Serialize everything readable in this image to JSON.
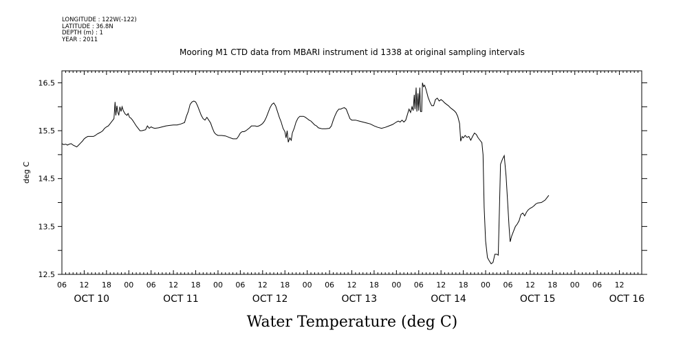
{
  "header": {
    "longitude": "LONGITUDE : 122W(-122)",
    "latitude": "LATITUDE : 36.8N",
    "depth": "DEPTH (m) : 1",
    "year": "YEAR : 2011"
  },
  "chart_data": {
    "type": "line",
    "title": "Mooring M1 CTD data from MBARI instrument id 1338 at original sampling intervals",
    "xlabel": "Water Temperature (deg C)",
    "ylabel": "deg C",
    "ylim": [
      12.5,
      16.9
    ],
    "yticks": [
      "16.5",
      "15.5",
      "14.5",
      "13.5",
      "12.5"
    ],
    "ytick_values": [
      16.5,
      15.5,
      14.5,
      13.5,
      12.5
    ],
    "x_units": "hours since Oct 10 00:00, 2011",
    "xlim": [
      6,
      162
    ],
    "hour_ticks": [
      {
        "x": 6,
        "label": "06"
      },
      {
        "x": 12,
        "label": "12"
      },
      {
        "x": 18,
        "label": "18"
      },
      {
        "x": 24,
        "label": "00"
      },
      {
        "x": 30,
        "label": "06"
      },
      {
        "x": 36,
        "label": "12"
      },
      {
        "x": 42,
        "label": "18"
      },
      {
        "x": 48,
        "label": "00"
      },
      {
        "x": 54,
        "label": "06"
      },
      {
        "x": 60,
        "label": "12"
      },
      {
        "x": 66,
        "label": "18"
      },
      {
        "x": 72,
        "label": "00"
      },
      {
        "x": 78,
        "label": "06"
      },
      {
        "x": 84,
        "label": "12"
      },
      {
        "x": 90,
        "label": "18"
      },
      {
        "x": 96,
        "label": "00"
      },
      {
        "x": 102,
        "label": "06"
      },
      {
        "x": 108,
        "label": "12"
      },
      {
        "x": 114,
        "label": "18"
      },
      {
        "x": 120,
        "label": "00"
      },
      {
        "x": 126,
        "label": "06"
      },
      {
        "x": 132,
        "label": "12"
      },
      {
        "x": 138,
        "label": "18"
      },
      {
        "x": 144,
        "label": "00"
      },
      {
        "x": 150,
        "label": "06"
      },
      {
        "x": 156,
        "label": "12"
      }
    ],
    "day_labels": [
      {
        "x": 14,
        "label": "OCT 10"
      },
      {
        "x": 38,
        "label": "OCT 11"
      },
      {
        "x": 62,
        "label": "OCT 12"
      },
      {
        "x": 86,
        "label": "OCT 13"
      },
      {
        "x": 110,
        "label": "OCT 14"
      },
      {
        "x": 134,
        "label": "OCT 15"
      },
      {
        "x": 158,
        "label": "OCT 16"
      }
    ],
    "series": [
      {
        "points": [
          [
            6.0,
            15.23
          ],
          [
            6.5,
            15.21
          ],
          [
            7.0,
            15.22
          ],
          [
            7.5,
            15.2
          ],
          [
            8.0,
            15.22
          ],
          [
            8.5,
            15.23
          ],
          [
            9.0,
            15.2
          ],
          [
            9.5,
            15.18
          ],
          [
            10.0,
            15.16
          ],
          [
            10.5,
            15.2
          ],
          [
            11.0,
            15.24
          ],
          [
            11.5,
            15.28
          ],
          [
            12.0,
            15.33
          ],
          [
            12.5,
            15.36
          ],
          [
            13.0,
            15.38
          ],
          [
            13.5,
            15.38
          ],
          [
            14.0,
            15.38
          ],
          [
            14.5,
            15.38
          ],
          [
            15.0,
            15.4
          ],
          [
            15.5,
            15.43
          ],
          [
            16.0,
            15.45
          ],
          [
            16.5,
            15.47
          ],
          [
            17.0,
            15.5
          ],
          [
            17.5,
            15.55
          ],
          [
            18.0,
            15.58
          ],
          [
            18.5,
            15.6
          ],
          [
            19.0,
            15.65
          ],
          [
            19.5,
            15.7
          ],
          [
            20.0,
            15.75
          ],
          [
            20.3,
            16.1
          ],
          [
            20.5,
            15.82
          ],
          [
            20.8,
            16.02
          ],
          [
            21.0,
            15.9
          ],
          [
            21.3,
            15.82
          ],
          [
            21.6,
            16.0
          ],
          [
            21.9,
            15.9
          ],
          [
            22.2,
            16.0
          ],
          [
            22.5,
            15.92
          ],
          [
            23.0,
            15.85
          ],
          [
            23.5,
            15.82
          ],
          [
            23.8,
            15.86
          ],
          [
            24.2,
            15.78
          ],
          [
            24.6,
            15.76
          ],
          [
            25.0,
            15.72
          ],
          [
            25.5,
            15.66
          ],
          [
            26.0,
            15.6
          ],
          [
            26.5,
            15.55
          ],
          [
            27.0,
            15.5
          ],
          [
            27.5,
            15.5
          ],
          [
            28.0,
            15.51
          ],
          [
            28.5,
            15.52
          ],
          [
            29.0,
            15.6
          ],
          [
            29.5,
            15.55
          ],
          [
            30.0,
            15.58
          ],
          [
            30.5,
            15.56
          ],
          [
            31.0,
            15.55
          ],
          [
            32.0,
            15.56
          ],
          [
            33.0,
            15.58
          ],
          [
            34.0,
            15.6
          ],
          [
            35.0,
            15.61
          ],
          [
            36.0,
            15.62
          ],
          [
            37.0,
            15.62
          ],
          [
            38.0,
            15.64
          ],
          [
            39.0,
            15.67
          ],
          [
            39.5,
            15.8
          ],
          [
            40.0,
            15.9
          ],
          [
            40.5,
            16.05
          ],
          [
            41.0,
            16.1
          ],
          [
            41.5,
            16.12
          ],
          [
            42.0,
            16.1
          ],
          [
            42.5,
            16.02
          ],
          [
            43.0,
            15.92
          ],
          [
            43.5,
            15.82
          ],
          [
            44.0,
            15.75
          ],
          [
            44.5,
            15.72
          ],
          [
            45.0,
            15.78
          ],
          [
            45.5,
            15.72
          ],
          [
            46.0,
            15.66
          ],
          [
            46.5,
            15.55
          ],
          [
            47.0,
            15.46
          ],
          [
            47.5,
            15.42
          ],
          [
            48.0,
            15.4
          ],
          [
            49.0,
            15.4
          ],
          [
            50.0,
            15.39
          ],
          [
            51.0,
            15.36
          ],
          [
            52.0,
            15.33
          ],
          [
            52.5,
            15.33
          ],
          [
            53.0,
            15.33
          ],
          [
            53.5,
            15.38
          ],
          [
            54.0,
            15.45
          ],
          [
            54.5,
            15.48
          ],
          [
            55.0,
            15.48
          ],
          [
            55.5,
            15.5
          ],
          [
            56.0,
            15.53
          ],
          [
            56.5,
            15.56
          ],
          [
            57.0,
            15.6
          ],
          [
            57.5,
            15.6
          ],
          [
            58.0,
            15.6
          ],
          [
            58.5,
            15.59
          ],
          [
            59.0,
            15.6
          ],
          [
            59.5,
            15.62
          ],
          [
            60.0,
            15.65
          ],
          [
            60.5,
            15.7
          ],
          [
            61.0,
            15.78
          ],
          [
            61.5,
            15.88
          ],
          [
            62.0,
            15.98
          ],
          [
            62.5,
            16.05
          ],
          [
            63.0,
            16.08
          ],
          [
            63.5,
            16.02
          ],
          [
            64.0,
            15.9
          ],
          [
            64.5,
            15.78
          ],
          [
            65.0,
            15.68
          ],
          [
            65.5,
            15.55
          ],
          [
            66.0,
            15.48
          ],
          [
            66.3,
            15.35
          ],
          [
            66.6,
            15.5
          ],
          [
            66.9,
            15.26
          ],
          [
            67.3,
            15.35
          ],
          [
            67.7,
            15.3
          ],
          [
            68.0,
            15.45
          ],
          [
            68.5,
            15.55
          ],
          [
            69.0,
            15.68
          ],
          [
            69.5,
            15.76
          ],
          [
            70.0,
            15.8
          ],
          [
            70.5,
            15.8
          ],
          [
            71.0,
            15.8
          ],
          [
            71.5,
            15.78
          ],
          [
            72.0,
            15.75
          ],
          [
            72.5,
            15.72
          ],
          [
            73.0,
            15.7
          ],
          [
            73.5,
            15.66
          ],
          [
            74.0,
            15.62
          ],
          [
            74.5,
            15.6
          ],
          [
            75.0,
            15.56
          ],
          [
            75.5,
            15.55
          ],
          [
            76.0,
            15.54
          ],
          [
            77.0,
            15.54
          ],
          [
            78.0,
            15.55
          ],
          [
            78.5,
            15.6
          ],
          [
            79.0,
            15.72
          ],
          [
            79.5,
            15.82
          ],
          [
            80.0,
            15.9
          ],
          [
            80.5,
            15.95
          ],
          [
            81.0,
            15.95
          ],
          [
            81.5,
            15.97
          ],
          [
            82.0,
            15.98
          ],
          [
            82.5,
            15.95
          ],
          [
            83.0,
            15.85
          ],
          [
            83.5,
            15.75
          ],
          [
            84.0,
            15.72
          ],
          [
            85.0,
            15.72
          ],
          [
            86.0,
            15.7
          ],
          [
            87.0,
            15.68
          ],
          [
            88.0,
            15.66
          ],
          [
            89.0,
            15.64
          ],
          [
            90.0,
            15.6
          ],
          [
            91.0,
            15.57
          ],
          [
            92.0,
            15.55
          ],
          [
            93.0,
            15.57
          ],
          [
            94.0,
            15.6
          ],
          [
            95.0,
            15.63
          ],
          [
            96.0,
            15.68
          ],
          [
            96.5,
            15.7
          ],
          [
            97.0,
            15.68
          ],
          [
            97.5,
            15.72
          ],
          [
            98.0,
            15.68
          ],
          [
            98.5,
            15.72
          ],
          [
            99.0,
            15.85
          ],
          [
            99.4,
            15.95
          ],
          [
            99.8,
            15.88
          ],
          [
            100.2,
            16.0
          ],
          [
            100.5,
            15.92
          ],
          [
            100.8,
            16.25
          ],
          [
            101.0,
            15.95
          ],
          [
            101.3,
            16.4
          ],
          [
            101.5,
            15.9
          ],
          [
            101.8,
            16.28
          ],
          [
            102.0,
            15.92
          ],
          [
            102.3,
            16.4
          ],
          [
            102.5,
            15.9
          ],
          [
            102.8,
            15.9
          ],
          [
            103.0,
            16.5
          ],
          [
            103.3,
            16.42
          ],
          [
            103.6,
            16.45
          ],
          [
            104.0,
            16.35
          ],
          [
            104.5,
            16.2
          ],
          [
            105.0,
            16.1
          ],
          [
            105.5,
            16.02
          ],
          [
            106.0,
            16.02
          ],
          [
            106.5,
            16.15
          ],
          [
            107.0,
            16.18
          ],
          [
            107.5,
            16.12
          ],
          [
            108.0,
            16.15
          ],
          [
            108.5,
            16.12
          ],
          [
            109.0,
            16.08
          ],
          [
            109.5,
            16.05
          ],
          [
            110.0,
            16.02
          ],
          [
            110.5,
            15.98
          ],
          [
            111.0,
            15.95
          ],
          [
            111.5,
            15.92
          ],
          [
            112.0,
            15.88
          ],
          [
            112.5,
            15.8
          ],
          [
            113.0,
            15.65
          ],
          [
            113.3,
            15.28
          ],
          [
            113.7,
            15.38
          ],
          [
            114.0,
            15.35
          ],
          [
            114.5,
            15.4
          ],
          [
            115.0,
            15.36
          ],
          [
            115.5,
            15.38
          ],
          [
            116.0,
            15.3
          ],
          [
            116.5,
            15.38
          ],
          [
            117.0,
            15.45
          ],
          [
            117.5,
            15.42
          ],
          [
            118.0,
            15.35
          ],
          [
            118.5,
            15.3
          ],
          [
            119.0,
            15.25
          ],
          [
            119.3,
            15.0
          ],
          [
            119.6,
            13.9
          ],
          [
            120.0,
            13.2
          ],
          [
            120.5,
            12.85
          ],
          [
            121.0,
            12.78
          ],
          [
            121.5,
            12.72
          ],
          [
            122.0,
            12.75
          ],
          [
            122.5,
            12.92
          ],
          [
            123.0,
            12.92
          ],
          [
            123.4,
            12.9
          ],
          [
            123.7,
            13.8
          ],
          [
            124.0,
            14.8
          ],
          [
            124.5,
            14.9
          ],
          [
            125.0,
            14.98
          ],
          [
            125.5,
            14.55
          ],
          [
            126.0,
            13.9
          ],
          [
            126.3,
            13.5
          ],
          [
            126.6,
            13.18
          ],
          [
            127.0,
            13.3
          ],
          [
            127.5,
            13.4
          ],
          [
            128.0,
            13.5
          ],
          [
            128.5,
            13.55
          ],
          [
            129.0,
            13.62
          ],
          [
            129.5,
            13.75
          ],
          [
            130.0,
            13.78
          ],
          [
            130.5,
            13.72
          ],
          [
            131.0,
            13.8
          ],
          [
            131.5,
            13.85
          ],
          [
            132.0,
            13.88
          ],
          [
            132.5,
            13.9
          ],
          [
            133.0,
            13.93
          ],
          [
            133.5,
            13.97
          ],
          [
            134.0,
            13.99
          ],
          [
            135.0,
            14.0
          ],
          [
            136.0,
            14.05
          ],
          [
            136.5,
            14.1
          ],
          [
            137.0,
            14.15
          ]
        ]
      }
    ]
  }
}
